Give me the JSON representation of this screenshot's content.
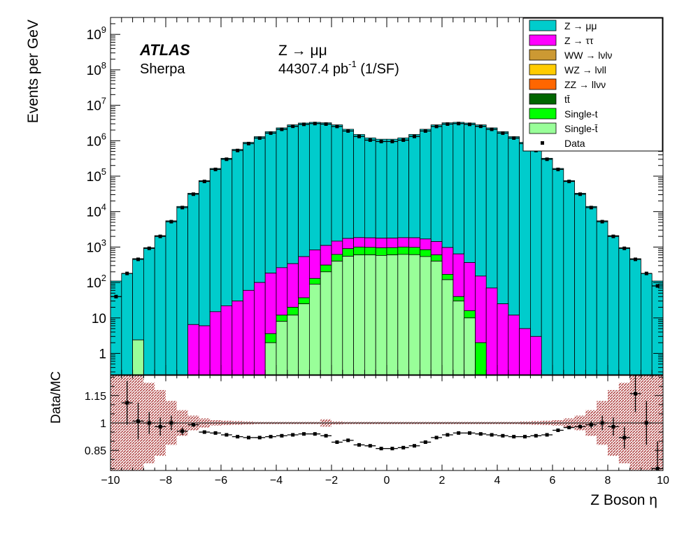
{
  "chart_data": {
    "type": "histogram-stack-with-ratio",
    "xlabel": "Z Boson η",
    "ylabel": "Events per GeV",
    "ratio_ylabel": "Data/MC",
    "xlim": [
      -10,
      10
    ],
    "ylim": [
      0.25,
      3000000000
    ],
    "yscale": "log",
    "ratio_ylim": [
      0.74,
      1.26
    ],
    "x_ticks": [
      "−10",
      "−8",
      "−6",
      "−4",
      "−2",
      "0",
      "2",
      "4",
      "6",
      "8",
      "10"
    ],
    "y_ticks": [
      {
        "v": 1,
        "base": "1",
        "exp": ""
      },
      {
        "v": 10,
        "base": "10",
        "exp": ""
      },
      {
        "v": 100,
        "base": "10",
        "exp": "2"
      },
      {
        "v": 1000,
        "base": "10",
        "exp": "3"
      },
      {
        "v": 10000,
        "base": "10",
        "exp": "4"
      },
      {
        "v": 100000,
        "base": "10",
        "exp": "5"
      },
      {
        "v": 1000000,
        "base": "10",
        "exp": "6"
      },
      {
        "v": 10000000,
        "base": "10",
        "exp": "7"
      },
      {
        "v": 100000000,
        "base": "10",
        "exp": "8"
      },
      {
        "v": 1000000000,
        "base": "10",
        "exp": "9"
      }
    ],
    "ratio_ticks": [
      {
        "v": 0.85,
        "label": "0.85"
      },
      {
        "v": 1.0,
        "label": "1"
      },
      {
        "v": 1.15,
        "label": "1.15"
      }
    ],
    "annotations": {
      "atlas": "ATLAS",
      "generator": "Sherpa",
      "process": "Z → μμ",
      "lumi_value": "44307.4 pb",
      "lumi_exp": "-1",
      "lumi_suffix": "(1/SF)"
    },
    "legend_position": "top-right",
    "bin_edges": [
      -10,
      -9.6,
      -9.2,
      -8.8,
      -8.4,
      -8,
      -7.6,
      -7.2,
      -6.8,
      -6.4,
      -6,
      -5.6,
      -5.2,
      -4.8,
      -4.4,
      -4,
      -3.6,
      -3.2,
      -2.8,
      -2.4,
      -2,
      -1.6,
      -1.2,
      -0.8,
      -0.4,
      0,
      0.4,
      0.8,
      1.2,
      1.6,
      2,
      2.4,
      2.8,
      3.2,
      3.6,
      4,
      4.4,
      4.8,
      5.2,
      5.6,
      6,
      6.4,
      6.8,
      7.2,
      7.6,
      8,
      8.4,
      8.8,
      9.2,
      9.6,
      10
    ],
    "series": [
      {
        "name": "Single-t̄",
        "color": "#99ff99",
        "values": [
          0,
          0,
          2.4,
          0,
          0,
          0,
          0,
          0,
          0,
          0,
          0,
          0,
          0,
          0,
          2,
          8,
          12,
          25,
          90,
          200,
          400,
          550,
          600,
          600,
          580,
          600,
          620,
          610,
          540,
          400,
          120,
          30,
          10,
          0,
          0,
          0,
          0,
          0,
          0,
          0,
          0,
          0,
          0,
          0,
          0,
          0,
          0,
          0,
          0,
          0
        ]
      },
      {
        "name": "Single-t",
        "color": "#00ff00",
        "values": [
          0,
          0,
          0,
          0,
          0,
          0,
          0,
          0,
          0,
          0,
          0,
          0,
          0,
          0,
          1.6,
          4,
          8,
          12,
          40,
          110,
          220,
          350,
          400,
          380,
          370,
          360,
          380,
          370,
          300,
          200,
          50,
          10,
          6,
          2,
          0,
          0,
          0,
          0,
          0,
          0,
          0,
          0,
          0,
          0,
          0,
          0,
          0,
          0,
          0,
          0
        ]
      },
      {
        "name": "tt̄",
        "color": "#006600",
        "values": [
          0,
          0,
          0,
          0,
          0,
          0,
          0,
          0,
          0,
          0,
          0,
          0,
          0,
          0,
          0,
          0,
          0,
          0,
          0,
          0,
          0,
          0,
          0,
          0,
          0,
          0,
          0,
          0,
          0,
          0,
          0,
          0,
          0,
          0,
          0,
          0,
          0,
          0,
          0,
          0,
          0,
          0,
          0,
          0,
          0,
          0,
          0,
          0,
          0,
          0
        ]
      },
      {
        "name": "ZZ → llνν",
        "color": "#ff6600",
        "values": [
          0,
          0,
          0,
          0,
          0,
          0,
          0,
          0,
          0,
          0,
          0,
          0,
          0,
          0,
          0,
          0,
          0,
          0,
          0,
          0,
          0,
          0,
          0,
          0,
          0,
          0,
          0,
          0,
          0,
          0,
          0,
          0,
          0,
          0,
          0,
          0,
          0,
          0,
          0,
          0,
          0,
          0,
          0,
          0,
          0,
          0,
          0,
          0,
          0,
          0
        ]
      },
      {
        "name": "WZ → lνll",
        "color": "#ffcc00",
        "values": [
          0,
          0,
          0,
          0,
          0,
          0,
          0,
          0,
          0,
          0,
          0,
          0,
          0,
          0,
          0,
          0,
          0,
          0,
          0,
          0,
          0,
          0,
          0,
          0,
          0,
          0,
          0,
          0,
          0,
          0,
          0,
          0,
          0,
          0,
          0,
          0,
          0,
          0,
          0,
          0,
          0,
          0,
          0,
          0,
          0,
          0,
          0,
          0,
          0,
          0
        ]
      },
      {
        "name": "WW → lνlν",
        "color": "#cc9933",
        "values": [
          0,
          0,
          0,
          0,
          0,
          0,
          0,
          0,
          0,
          0,
          0,
          0,
          0,
          0,
          0,
          0,
          0,
          0,
          0,
          0,
          0,
          0,
          0,
          0,
          0,
          0,
          0,
          0,
          0,
          0,
          0,
          0,
          0,
          0,
          0,
          0,
          0,
          0,
          0,
          0,
          0,
          0,
          0,
          0,
          0,
          0,
          0,
          0,
          0,
          0
        ]
      },
      {
        "name": "Z → ττ",
        "color": "#ff00ff",
        "values": [
          0,
          0,
          0,
          0,
          0,
          0,
          0,
          6.5,
          6,
          15,
          22,
          30,
          60,
          100,
          180,
          250,
          320,
          500,
          700,
          800,
          850,
          850,
          850,
          840,
          830,
          830,
          840,
          850,
          850,
          830,
          800,
          600,
          350,
          150,
          70,
          25,
          12,
          5,
          3,
          0,
          0,
          0,
          0,
          0,
          0,
          0,
          0,
          0,
          0,
          0
        ]
      },
      {
        "name": "Z → μμ",
        "color": "#00cccc",
        "values": [
          110,
          180,
          470,
          960,
          2100,
          5500,
          14000,
          33000,
          75000,
          165000,
          320000,
          570000,
          900000,
          1300000,
          1800000,
          2300000,
          2800000,
          3150000,
          3300000,
          3200000,
          2800000,
          2100000,
          1500000,
          1200000,
          1100000,
          1100000,
          1200000,
          1500000,
          2100000,
          2800000,
          3200000,
          3300000,
          3150000,
          2800000,
          2300000,
          1800000,
          1300000,
          900000,
          570000,
          320000,
          165000,
          75000,
          33000,
          14000,
          5500,
          2100,
          960,
          470,
          180,
          110
        ]
      }
    ],
    "data": {
      "name": "Data",
      "values": [
        40,
        180,
        450,
        920,
        2000,
        5200,
        13000,
        31000,
        71000,
        155000,
        300000,
        530000,
        830000,
        1190000,
        1640000,
        2100000,
        2550000,
        2900000,
        3050000,
        2950000,
        2530000,
        1880000,
        1320000,
        1040000,
        950000,
        950000,
        1040000,
        1320000,
        1880000,
        2530000,
        2950000,
        3050000,
        2900000,
        2550000,
        2100000,
        1640000,
        1190000,
        830000,
        530000,
        300000,
        155000,
        71000,
        31000,
        13000,
        5200,
        2000,
        920,
        450,
        180,
        80
      ],
      "ratio": [
        null,
        1.11,
        1.01,
        1.0,
        0.98,
        1.0,
        0.955,
        0.99,
        0.95,
        0.945,
        0.935,
        0.925,
        0.92,
        0.92,
        0.925,
        0.93,
        0.935,
        0.94,
        0.94,
        0.93,
        0.895,
        0.905,
        0.88,
        0.875,
        0.86,
        0.86,
        0.865,
        0.875,
        0.895,
        0.92,
        0.935,
        0.945,
        0.945,
        0.94,
        0.935,
        0.93,
        0.925,
        0.925,
        0.93,
        0.935,
        0.96,
        0.975,
        0.98,
        0.99,
        1.0,
        0.98,
        0.92,
        1.16,
        1.0,
        0.75
      ],
      "ratio_err": [
        0,
        0.12,
        0.1,
        0.06,
        0.05,
        0.04,
        0.02,
        0.01,
        0.005,
        0.004,
        0.003,
        0.003,
        0.002,
        0.002,
        0.002,
        0.002,
        0.002,
        0.002,
        0.002,
        0.002,
        0.002,
        0.002,
        0.002,
        0.002,
        0.002,
        0.002,
        0.002,
        0.002,
        0.002,
        0.002,
        0.002,
        0.002,
        0.002,
        0.002,
        0.002,
        0.002,
        0.002,
        0.002,
        0.003,
        0.003,
        0.004,
        0.005,
        0.01,
        0.02,
        0.04,
        0.05,
        0.06,
        0.1,
        0.12,
        0.15
      ]
    },
    "mc_uncertainty_ratio": [
      0.28,
      0.28,
      0.26,
      0.22,
      0.18,
      0.12,
      0.07,
      0.04,
      0.025,
      0.015,
      0.012,
      0.01,
      0.008,
      0.006,
      0.006,
      0.006,
      0.006,
      0.006,
      0.006,
      0.02,
      0.008,
      0.006,
      0.006,
      0.006,
      0.006,
      0.006,
      0.006,
      0.006,
      0.006,
      0.006,
      0.006,
      0.006,
      0.006,
      0.006,
      0.006,
      0.006,
      0.006,
      0.008,
      0.01,
      0.012,
      0.015,
      0.025,
      0.04,
      0.07,
      0.12,
      0.18,
      0.22,
      0.26,
      0.28,
      0.28
    ]
  }
}
